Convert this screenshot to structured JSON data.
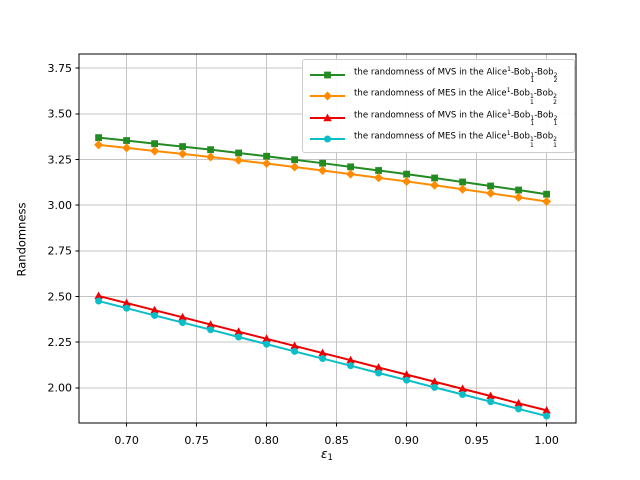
{
  "chart_data": {
    "type": "line",
    "title": "",
    "xlabel": "ε₁",
    "xlabel_parts": {
      "base": "ε",
      "sub": "1"
    },
    "ylabel": "Randomness",
    "xlim": [
      0.666,
      1.021
    ],
    "ylim": [
      1.807,
      3.828
    ],
    "x_ticks": [
      0.7,
      0.75,
      0.8,
      0.85,
      0.9,
      0.95,
      1.0
    ],
    "x_tick_labels": [
      "0.70",
      "0.75",
      "0.80",
      "0.85",
      "0.90",
      "0.95",
      "1.00"
    ],
    "y_ticks": [
      2.0,
      2.25,
      2.5,
      2.75,
      3.0,
      3.25,
      3.5,
      3.75
    ],
    "y_tick_labels": [
      "2.00",
      "2.25",
      "2.50",
      "2.75",
      "3.00",
      "3.25",
      "3.50",
      "3.75"
    ],
    "grid": true,
    "grid_color": "#c4c4c4",
    "spine_color": "#000000",
    "legend_position": "upper right",
    "x": [
      0.68,
      0.7,
      0.72,
      0.74,
      0.76,
      0.78,
      0.8,
      0.82,
      0.84,
      0.86,
      0.88,
      0.9,
      0.92,
      0.94,
      0.96,
      0.98,
      1.0
    ],
    "series": [
      {
        "name": "the randomness of MVS in the Alice¹-Bob¹₁-Bob²₂",
        "label_parts": {
          "prefix": "the randomness of MVS in the Alice",
          "base_sup": "1",
          "groups": [
            {
              "base": "-Bob",
              "sup": "1",
              "sub": "1"
            },
            {
              "base": "-Bob",
              "sup": "2",
              "sub": "2"
            }
          ]
        },
        "color": "#228B22",
        "marker": "square",
        "values": [
          3.37,
          3.354,
          3.337,
          3.321,
          3.304,
          3.286,
          3.268,
          3.249,
          3.23,
          3.21,
          3.19,
          3.17,
          3.149,
          3.127,
          3.105,
          3.083,
          3.06
        ]
      },
      {
        "name": "the randomness of MES in the Alice¹-Bob¹₁-Bob²₂",
        "label_parts": {
          "prefix": "the randomness of MES in the Alice",
          "base_sup": "1",
          "groups": [
            {
              "base": "-Bob",
              "sup": "1",
              "sub": "1"
            },
            {
              "base": "-Bob",
              "sup": "2",
              "sub": "2"
            }
          ]
        },
        "color": "#FF8C00",
        "marker": "diamond",
        "values": [
          3.33,
          3.314,
          3.297,
          3.281,
          3.264,
          3.246,
          3.228,
          3.209,
          3.19,
          3.17,
          3.15,
          3.13,
          3.109,
          3.087,
          3.065,
          3.043,
          3.02
        ]
      },
      {
        "name": "the randomness of MVS in the Alice¹-Bob¹₁-Bob²₁",
        "label_parts": {
          "prefix": "the randomness of MVS in the Alice",
          "base_sup": "1",
          "groups": [
            {
              "base": "-Bob",
              "sup": "1",
              "sub": "1"
            },
            {
              "base": "-Bob",
              "sup": "2",
              "sub": "1"
            }
          ]
        },
        "color": "#EE0000",
        "marker": "triangle",
        "values": [
          2.503,
          2.464,
          2.425,
          2.386,
          2.346,
          2.307,
          2.268,
          2.229,
          2.19,
          2.151,
          2.111,
          2.072,
          2.033,
          1.994,
          1.955,
          1.915,
          1.876
        ]
      },
      {
        "name": "the randomness of MES in the Alice¹-Bob¹₁-Bob²₁",
        "label_parts": {
          "prefix": "the randomness of MES in the Alice",
          "base_sup": "1",
          "groups": [
            {
              "base": "-Bob",
              "sup": "1",
              "sub": "1"
            },
            {
              "base": "-Bob",
              "sup": "2",
              "sub": "1"
            }
          ]
        },
        "color": "#0ABEC8",
        "marker": "circle",
        "values": [
          2.475,
          2.436,
          2.396,
          2.357,
          2.318,
          2.278,
          2.239,
          2.199,
          2.16,
          2.121,
          2.081,
          2.042,
          2.002,
          1.963,
          1.924,
          1.884,
          1.845
        ]
      }
    ]
  }
}
